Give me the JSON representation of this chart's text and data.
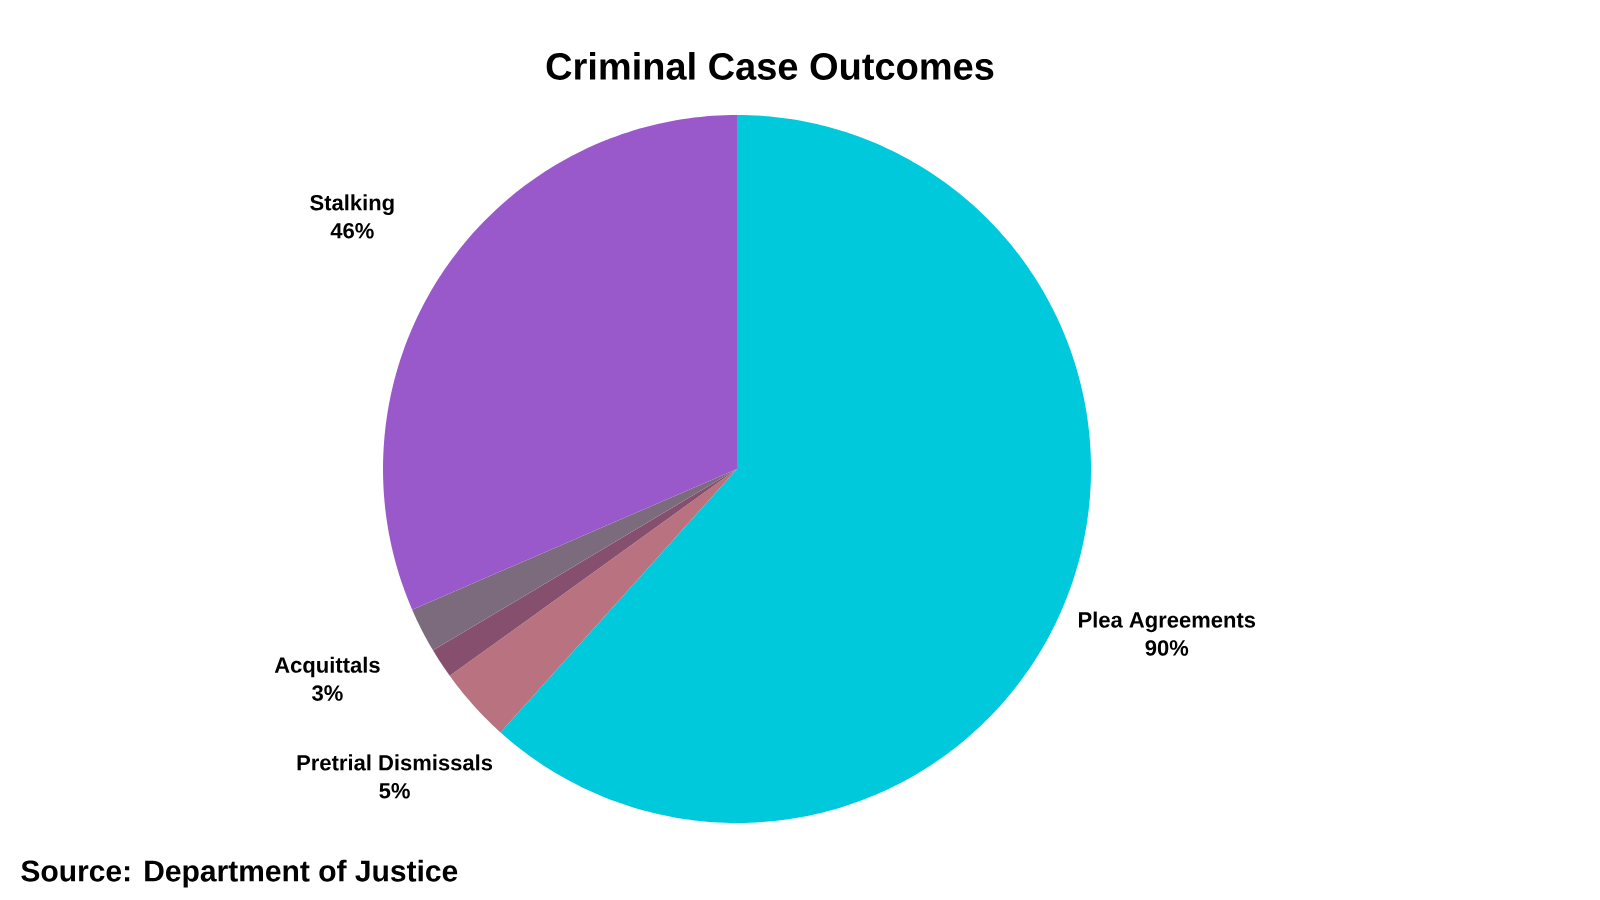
{
  "chart_data": {
    "type": "pie",
    "title": "Criminal Case Outcomes",
    "categories": [
      "Plea Agreements",
      "Pretrial Dismissals",
      null,
      "Acquittals",
      "Stalking"
    ],
    "values": [
      90,
      5,
      2,
      3,
      46
    ],
    "value_labels": [
      "90%",
      "5%",
      null,
      "3%",
      "46%"
    ],
    "colors": [
      "#00c9db",
      "#b87280",
      "#874f6e",
      "#7b6b7d",
      "#9a59cb"
    ],
    "annotations": [
      "Source: Department of Justice"
    ]
  }
}
